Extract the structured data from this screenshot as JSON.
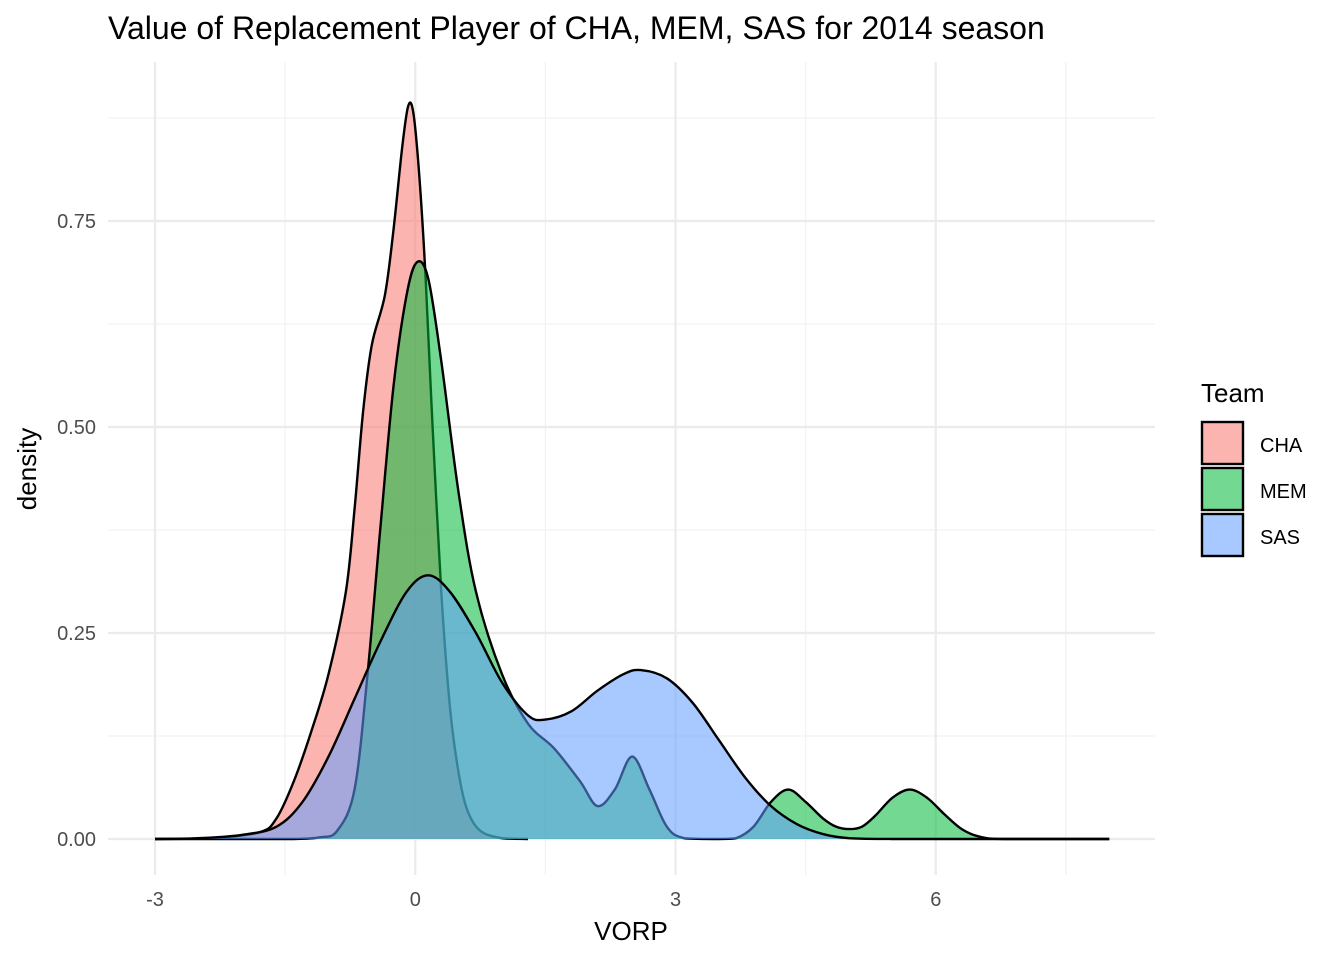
{
  "chart_data": {
    "type": "area",
    "subtype": "density",
    "title": "Value of Replacement Player of CHA, MEM, SAS for 2014 season",
    "xlabel": "VORP",
    "ylabel": "density",
    "xlim": [
      -3,
      8
    ],
    "ylim": [
      0,
      0.9
    ],
    "x_ticks": [
      "-3",
      "0",
      "3",
      "6"
    ],
    "y_ticks": [
      "0.00",
      "0.25",
      "0.50",
      "0.75"
    ],
    "grid": true,
    "legend": {
      "title": "Team",
      "position": "right"
    },
    "series": [
      {
        "name": "CHA",
        "color": "#F8766D",
        "points": [
          [
            -3.0,
            0
          ],
          [
            -2.4,
            0.001
          ],
          [
            -1.8,
            0.008
          ],
          [
            -1.6,
            0.025
          ],
          [
            -1.4,
            0.07
          ],
          [
            -1.2,
            0.13
          ],
          [
            -1.0,
            0.2
          ],
          [
            -0.8,
            0.3
          ],
          [
            -0.7,
            0.4
          ],
          [
            -0.6,
            0.52
          ],
          [
            -0.5,
            0.6
          ],
          [
            -0.35,
            0.66
          ],
          [
            -0.25,
            0.74
          ],
          [
            -0.15,
            0.84
          ],
          [
            -0.08,
            0.89
          ],
          [
            -0.02,
            0.88
          ],
          [
            0.05,
            0.8
          ],
          [
            0.12,
            0.68
          ],
          [
            0.2,
            0.5
          ],
          [
            0.3,
            0.3
          ],
          [
            0.4,
            0.16
          ],
          [
            0.5,
            0.08
          ],
          [
            0.6,
            0.035
          ],
          [
            0.75,
            0.01
          ],
          [
            1.0,
            0.001
          ],
          [
            1.3,
            0
          ]
        ]
      },
      {
        "name": "MEM",
        "color": "#00BA38",
        "points": [
          [
            -3.0,
            0
          ],
          [
            -2.0,
            0
          ],
          [
            -1.4,
            0
          ],
          [
            -1.1,
            0.002
          ],
          [
            -0.9,
            0.01
          ],
          [
            -0.7,
            0.06
          ],
          [
            -0.55,
            0.2
          ],
          [
            -0.4,
            0.38
          ],
          [
            -0.25,
            0.55
          ],
          [
            -0.1,
            0.66
          ],
          [
            0.02,
            0.7
          ],
          [
            0.15,
            0.68
          ],
          [
            0.3,
            0.58
          ],
          [
            0.5,
            0.42
          ],
          [
            0.7,
            0.3
          ],
          [
            1.0,
            0.2
          ],
          [
            1.3,
            0.14
          ],
          [
            1.6,
            0.11
          ],
          [
            1.9,
            0.07
          ],
          [
            2.1,
            0.04
          ],
          [
            2.3,
            0.06
          ],
          [
            2.5,
            0.1
          ],
          [
            2.7,
            0.06
          ],
          [
            2.9,
            0.015
          ],
          [
            3.1,
            0.001
          ],
          [
            3.5,
            0
          ],
          [
            3.7,
            0.001
          ],
          [
            3.9,
            0.015
          ],
          [
            4.1,
            0.045
          ],
          [
            4.3,
            0.06
          ],
          [
            4.5,
            0.045
          ],
          [
            4.7,
            0.025
          ],
          [
            4.85,
            0.015
          ],
          [
            5.0,
            0.012
          ],
          [
            5.15,
            0.015
          ],
          [
            5.3,
            0.028
          ],
          [
            5.5,
            0.05
          ],
          [
            5.7,
            0.06
          ],
          [
            5.9,
            0.05
          ],
          [
            6.1,
            0.03
          ],
          [
            6.3,
            0.012
          ],
          [
            6.5,
            0.003
          ],
          [
            6.8,
            0
          ],
          [
            8.0,
            0
          ]
        ]
      },
      {
        "name": "SAS",
        "color": "#619CFF",
        "points": [
          [
            -3.0,
            0
          ],
          [
            -2.5,
            0.001
          ],
          [
            -2.0,
            0.005
          ],
          [
            -1.6,
            0.015
          ],
          [
            -1.3,
            0.045
          ],
          [
            -1.0,
            0.1
          ],
          [
            -0.7,
            0.17
          ],
          [
            -0.4,
            0.24
          ],
          [
            -0.1,
            0.3
          ],
          [
            0.15,
            0.32
          ],
          [
            0.4,
            0.3
          ],
          [
            0.7,
            0.25
          ],
          [
            1.0,
            0.19
          ],
          [
            1.3,
            0.15
          ],
          [
            1.5,
            0.145
          ],
          [
            1.8,
            0.155
          ],
          [
            2.1,
            0.18
          ],
          [
            2.4,
            0.2
          ],
          [
            2.6,
            0.205
          ],
          [
            2.9,
            0.195
          ],
          [
            3.2,
            0.165
          ],
          [
            3.5,
            0.12
          ],
          [
            3.8,
            0.075
          ],
          [
            4.1,
            0.04
          ],
          [
            4.4,
            0.018
          ],
          [
            4.7,
            0.006
          ],
          [
            5.0,
            0.001
          ],
          [
            5.5,
            0
          ],
          [
            6.0,
            0
          ],
          [
            8.0,
            0
          ]
        ]
      }
    ]
  }
}
